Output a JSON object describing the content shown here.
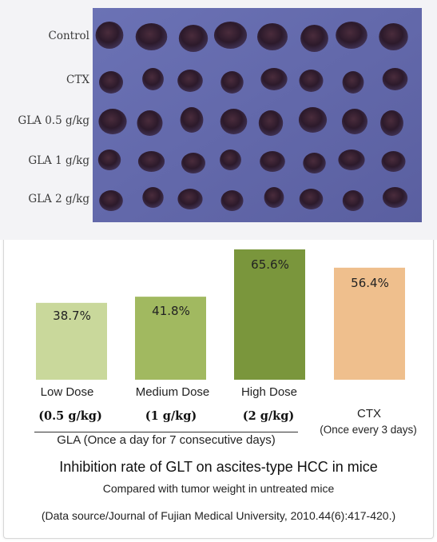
{
  "photo": {
    "row_labels": [
      "Control",
      "CTX",
      "GLA 0.5 g/kg",
      "GLA 1 g/kg",
      "GLA 2 g/kg"
    ],
    "tumors_per_row": 8,
    "background_color": "#5e66a8"
  },
  "chart_data": {
    "type": "bar",
    "title": "Inhibition rate of GLT on ascites-type HCC in mice",
    "subtitle": "Compared with tumor weight in untreated mice",
    "source": "(Data source/Journal of Fujian Medical University, 2010.44(6):417-420.)",
    "categories": [
      "Low Dose",
      "Medium Dose",
      "High Dose",
      "CTX"
    ],
    "category_sublabels": [
      "(0.5 g/kg)",
      "(1 g/kg)",
      "(2 g/kg)",
      "(Once every 3 days)"
    ],
    "values": [
      38.7,
      41.8,
      65.6,
      56.4
    ],
    "value_labels": [
      "38.7%",
      "41.8%",
      "65.6%",
      "56.4%"
    ],
    "colors": [
      "#c9d89b",
      "#a1b960",
      "#7a963c",
      "#efbf8d"
    ],
    "group_label": "GLA (Once a day for 7 consecutive days)",
    "ylim": [
      0,
      70
    ],
    "xlabel": "",
    "ylabel": ""
  }
}
